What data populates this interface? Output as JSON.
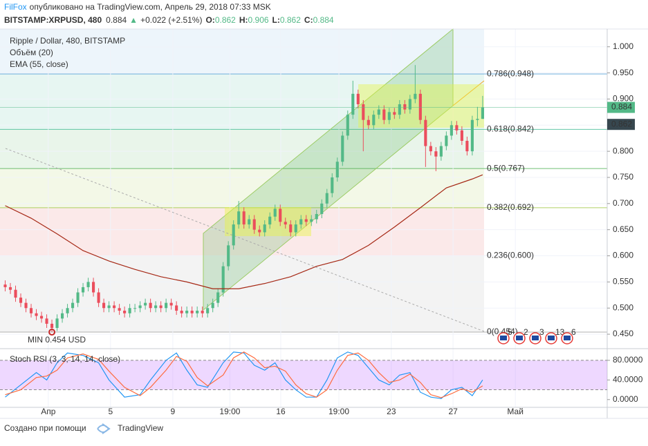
{
  "header": {
    "author": "FilFox",
    "published": "опубликовано на TradingView.com, Апрель 29, 2018 07:33 MSK",
    "symbol": "BITSTAMP:XRPUSD, 480",
    "price": "0.884",
    "change": "+0.022 (+2.51%)",
    "ohlc": [
      {
        "key": "O:",
        "value": "0.862"
      },
      {
        "key": "H:",
        "value": "0.906"
      },
      {
        "key": "L:",
        "value": "0.862"
      },
      {
        "key": "C:",
        "value": "0.884"
      }
    ]
  },
  "legend": [
    "Ripple / Dollar, 480, BITSTAMP",
    "Объём (20)",
    "EMA (55, close)"
  ],
  "min_label": "MIN 0.454 USD",
  "events": [
    "5",
    "2",
    "3",
    "13",
    "6"
  ],
  "footer": {
    "text": "Создано при помощи",
    "brand": "TradingView"
  },
  "chart_data": [
    {
      "type": "candlestick",
      "up_color": "#53b987",
      "down_color": "#eb4d5c",
      "xlim": [
        -1,
        116
      ],
      "xticks": [
        {
          "value": 8.3,
          "label": "Апр"
        },
        {
          "value": 20.3,
          "label": "5"
        },
        {
          "value": 32.3,
          "label": "9"
        },
        {
          "value": 43.3,
          "label": "19:00"
        },
        {
          "value": 53.1,
          "label": "16"
        },
        {
          "value": 64.3,
          "label": "19:00"
        },
        {
          "value": 74.4,
          "label": "23"
        },
        {
          "value": 86.3,
          "label": "27"
        },
        {
          "value": 98.3,
          "label": "Май"
        }
      ],
      "ylim": [
        0.425,
        1.034
      ],
      "yticks": [
        {
          "value": 1.0,
          "label": "1.000"
        },
        {
          "value": 0.95,
          "label": "0.950"
        },
        {
          "value": 0.9,
          "label": "0.900"
        },
        {
          "value": 0.85,
          "label": "0.850"
        },
        {
          "value": 0.8,
          "label": "0.800"
        },
        {
          "value": 0.75,
          "label": "0.750"
        },
        {
          "value": 0.7,
          "label": "0.700"
        },
        {
          "value": 0.65,
          "label": "0.650"
        },
        {
          "value": 0.6,
          "label": "0.600"
        },
        {
          "value": 0.55,
          "label": "0.550"
        },
        {
          "value": 0.5,
          "label": "0.500"
        },
        {
          "value": 0.45,
          "label": "0.450"
        }
      ],
      "open": [
        0.545,
        0.54,
        0.535,
        0.52,
        0.51,
        0.5,
        0.49,
        0.485,
        0.48,
        0.47,
        0.462,
        0.48,
        0.49,
        0.5,
        0.51,
        0.53,
        0.54,
        0.55,
        0.53,
        0.51,
        0.5,
        0.505,
        0.5,
        0.495,
        0.49,
        0.5,
        0.5,
        0.505,
        0.51,
        0.5,
        0.505,
        0.5,
        0.51,
        0.505,
        0.495,
        0.49,
        0.495,
        0.49,
        0.495,
        0.49,
        0.5,
        0.51,
        0.53,
        0.58,
        0.62,
        0.66,
        0.685,
        0.66,
        0.67,
        0.65,
        0.645,
        0.66,
        0.675,
        0.69,
        0.665,
        0.66,
        0.645,
        0.66,
        0.67,
        0.665,
        0.67,
        0.68,
        0.7,
        0.72,
        0.75,
        0.78,
        0.83,
        0.87,
        0.91,
        0.89,
        0.86,
        0.85,
        0.87,
        0.88,
        0.86,
        0.875,
        0.87,
        0.89,
        0.88,
        0.9,
        0.91,
        0.86,
        0.81,
        0.8,
        0.79,
        0.81,
        0.83,
        0.85,
        0.84,
        0.82,
        0.8,
        0.86,
        0.862
      ],
      "high": [
        0.553,
        0.548,
        0.543,
        0.528,
        0.518,
        0.508,
        0.498,
        0.493,
        0.488,
        0.478,
        0.488,
        0.498,
        0.508,
        0.518,
        0.538,
        0.548,
        0.558,
        0.558,
        0.538,
        0.518,
        0.513,
        0.513,
        0.508,
        0.503,
        0.508,
        0.508,
        0.513,
        0.518,
        0.518,
        0.513,
        0.513,
        0.518,
        0.518,
        0.513,
        0.503,
        0.503,
        0.503,
        0.503,
        0.503,
        0.508,
        0.518,
        0.538,
        0.588,
        0.628,
        0.668,
        0.705,
        0.693,
        0.678,
        0.678,
        0.658,
        0.668,
        0.683,
        0.698,
        0.698,
        0.673,
        0.668,
        0.668,
        0.678,
        0.678,
        0.678,
        0.688,
        0.708,
        0.728,
        0.758,
        0.788,
        0.838,
        0.878,
        0.935,
        0.918,
        0.898,
        0.868,
        0.878,
        0.888,
        0.888,
        0.883,
        0.883,
        0.898,
        0.898,
        0.908,
        0.965,
        0.918,
        0.868,
        0.818,
        0.808,
        0.818,
        0.838,
        0.858,
        0.858,
        0.848,
        0.828,
        0.868,
        0.885,
        0.906
      ],
      "low": [
        0.532,
        0.527,
        0.512,
        0.502,
        0.492,
        0.482,
        0.477,
        0.472,
        0.462,
        0.454,
        0.456,
        0.472,
        0.482,
        0.492,
        0.502,
        0.522,
        0.532,
        0.522,
        0.502,
        0.492,
        0.492,
        0.492,
        0.487,
        0.482,
        0.482,
        0.492,
        0.492,
        0.497,
        0.492,
        0.492,
        0.492,
        0.492,
        0.497,
        0.487,
        0.482,
        0.482,
        0.482,
        0.482,
        0.482,
        0.482,
        0.492,
        0.502,
        0.522,
        0.572,
        0.612,
        0.652,
        0.652,
        0.652,
        0.642,
        0.637,
        0.637,
        0.652,
        0.667,
        0.657,
        0.652,
        0.637,
        0.637,
        0.652,
        0.657,
        0.657,
        0.662,
        0.672,
        0.692,
        0.712,
        0.742,
        0.772,
        0.822,
        0.862,
        0.882,
        0.8,
        0.842,
        0.842,
        0.862,
        0.852,
        0.852,
        0.862,
        0.862,
        0.872,
        0.872,
        0.892,
        0.852,
        0.77,
        0.792,
        0.762,
        0.782,
        0.802,
        0.822,
        0.832,
        0.812,
        0.792,
        0.792,
        0.848,
        0.862
      ],
      "close": [
        0.54,
        0.535,
        0.52,
        0.51,
        0.5,
        0.49,
        0.485,
        0.48,
        0.47,
        0.462,
        0.48,
        0.49,
        0.5,
        0.51,
        0.53,
        0.54,
        0.55,
        0.53,
        0.51,
        0.5,
        0.505,
        0.5,
        0.495,
        0.49,
        0.5,
        0.5,
        0.505,
        0.51,
        0.5,
        0.505,
        0.5,
        0.51,
        0.505,
        0.495,
        0.49,
        0.495,
        0.49,
        0.495,
        0.49,
        0.5,
        0.51,
        0.53,
        0.58,
        0.62,
        0.66,
        0.685,
        0.66,
        0.67,
        0.65,
        0.645,
        0.66,
        0.675,
        0.69,
        0.665,
        0.66,
        0.645,
        0.66,
        0.67,
        0.665,
        0.67,
        0.68,
        0.7,
        0.72,
        0.75,
        0.78,
        0.83,
        0.87,
        0.91,
        0.89,
        0.86,
        0.85,
        0.87,
        0.88,
        0.86,
        0.875,
        0.87,
        0.89,
        0.88,
        0.9,
        0.91,
        0.86,
        0.81,
        0.8,
        0.79,
        0.81,
        0.83,
        0.85,
        0.84,
        0.82,
        0.8,
        0.86,
        0.862,
        0.884
      ],
      "ema": {
        "name": "EMA (55, close)",
        "color": "#a52714",
        "x": [
          0,
          5,
          10,
          15,
          20,
          25,
          30,
          35,
          40,
          45,
          50,
          55,
          60,
          65,
          70,
          75,
          80,
          85,
          90,
          92
        ],
        "values": [
          0.696,
          0.672,
          0.642,
          0.61,
          0.59,
          0.574,
          0.56,
          0.55,
          0.537,
          0.537,
          0.547,
          0.56,
          0.58,
          0.593,
          0.62,
          0.655,
          0.692,
          0.73,
          0.747,
          0.755
        ]
      },
      "fib_levels": [
        {
          "price": 0.948,
          "label": "0.786(0.948)",
          "color": "#4d9fd6"
        },
        {
          "price": 0.842,
          "label": "0.618(0.842)",
          "color": "#3cb891"
        },
        {
          "price": 0.767,
          "label": "0.5(0.767)",
          "color": "#4caf50"
        },
        {
          "price": 0.692,
          "label": "0.382(0.692)",
          "color": "#9bc53d"
        },
        {
          "price": 0.6,
          "label": "0.236(0.600)",
          "color": "#e0474c"
        },
        {
          "price": 0.454,
          "label": "0(0.454)",
          "color": "#9e9e9e"
        }
      ],
      "min_price": 0.454,
      "last_price": {
        "value": 0.884,
        "label": "0.884",
        "color": "#53b987"
      },
      "open_price": {
        "value": 0.862,
        "label": "0.862",
        "color": "#37474f"
      }
    },
    {
      "type": "line",
      "title": "Stoch RSI (3, 3, 14, 14, close)",
      "xlim": [
        -1,
        116
      ],
      "ylim": [
        -13,
        101
      ],
      "yticks": [
        {
          "value": 80,
          "label": "80.0000"
        },
        {
          "value": 40,
          "label": "40.0000"
        },
        {
          "value": 0,
          "label": "0.0000"
        }
      ],
      "band": [
        20,
        80
      ],
      "band_color": "#c77dff",
      "x": [
        0,
        3,
        6,
        8,
        10,
        12,
        15,
        18,
        20,
        23,
        26,
        28,
        31,
        33,
        35,
        37,
        39,
        42,
        44,
        46,
        48,
        50,
        52,
        54,
        56,
        58,
        60,
        62,
        64,
        66,
        68,
        70,
        72,
        74,
        76,
        78,
        80,
        82,
        84,
        86,
        88,
        90,
        92
      ],
      "series": [
        {
          "name": "K",
          "color": "#2196f3",
          "values": [
            5,
            30,
            55,
            40,
            75,
            95,
            90,
            75,
            40,
            5,
            10,
            40,
            80,
            95,
            60,
            30,
            25,
            75,
            97,
            95,
            70,
            60,
            75,
            40,
            20,
            5,
            5,
            40,
            85,
            97,
            90,
            65,
            40,
            30,
            50,
            55,
            15,
            5,
            2,
            20,
            25,
            8,
            40
          ]
        },
        {
          "name": "D",
          "color": "#ff6a3d",
          "values": [
            10,
            20,
            45,
            48,
            60,
            85,
            93,
            82,
            58,
            25,
            8,
            25,
            60,
            88,
            78,
            45,
            28,
            50,
            85,
            97,
            85,
            65,
            68,
            58,
            30,
            12,
            5,
            20,
            60,
            90,
            95,
            80,
            55,
            35,
            40,
            52,
            35,
            10,
            4,
            12,
            22,
            15,
            28
          ]
        }
      ]
    }
  ]
}
